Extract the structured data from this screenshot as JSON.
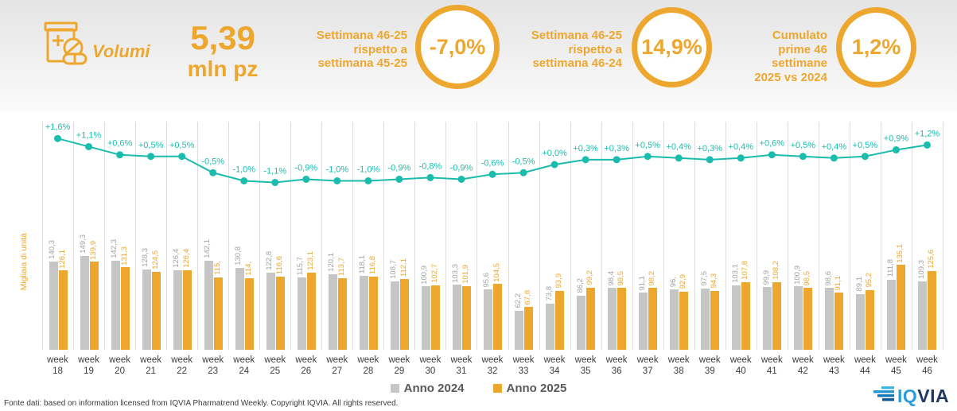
{
  "header": {
    "volumi_label": "Volumi",
    "headline_value": "5,39",
    "headline_unit": "mln pz",
    "kpis": [
      {
        "label": "Settimana 46-25\nrispetto a\nsettimana 45-25",
        "value": "-7,0%"
      },
      {
        "label": "Settimana 46-25\nrispetto a\nsettimana 46-24",
        "value": "14,9%"
      },
      {
        "label": "Cumulato\nprime 46\nsettimane\n2025 vs 2024",
        "value": "1,2%"
      }
    ]
  },
  "chart_data": {
    "type": "bar",
    "title": "",
    "xlabel": "",
    "ylabel": "Migliaia di unità",
    "ylim": [
      0,
      160
    ],
    "grid": "vertical",
    "legend_position": "bottom",
    "category_prefix": "week",
    "categories": [
      "18",
      "19",
      "20",
      "21",
      "22",
      "23",
      "24",
      "25",
      "26",
      "27",
      "28",
      "29",
      "30",
      "31",
      "32",
      "33",
      "34",
      "35",
      "36",
      "37",
      "38",
      "39",
      "40",
      "41",
      "42",
      "43",
      "44",
      "45",
      "46"
    ],
    "series": [
      {
        "name": "Anno 2024",
        "color": "#C6C6C6",
        "label_color": "#A3A3A3",
        "values": [
          140.3,
          149.3,
          142.3,
          128.3,
          126.4,
          142.1,
          130.8,
          122.8,
          115.7,
          120.1,
          118.1,
          108.7,
          100.9,
          103.3,
          95.6,
          62.2,
          73.8,
          86.2,
          98.4,
          91.1,
          96.0,
          97.5,
          103.1,
          99.9,
          100.9,
          98.6,
          89.1,
          111.8,
          109.3
        ],
        "labels": [
          "140,3",
          "149,3",
          "142,3",
          "128,3",
          "126,4",
          "142,1",
          "130,8",
          "122,8",
          "115,7",
          "120,1",
          "118,1",
          "108,7",
          "100,9",
          "103,3",
          "95,6",
          "62,2",
          "73,8",
          "86,2",
          "98,4",
          "91,1",
          "96,",
          "97,5",
          "103,1",
          "99,9",
          "100,9",
          "98,6",
          "89,1",
          "111,8",
          "109,3"
        ]
      },
      {
        "name": "Anno 2025",
        "color": "#EEA72E",
        "label_color": "#EEA72E",
        "values": [
          126.1,
          139.9,
          131.3,
          124.5,
          126.4,
          115.0,
          114.0,
          116.6,
          123.1,
          113.7,
          116.8,
          112.1,
          102.7,
          101.9,
          104.5,
          67.8,
          93.9,
          99.2,
          98.5,
          98.2,
          92.9,
          94.3,
          107.8,
          108.2,
          98.5,
          91.1,
          95.2,
          135.1,
          125.6
        ],
        "labels": [
          "126,1",
          "139,9",
          "131,3",
          "124,5",
          "126,4",
          "115,",
          "114,",
          "116,6",
          "123,1",
          "113,7",
          "116,8",
          "112,1",
          "102,7",
          "101,9",
          "104,5",
          "67,8",
          "93,9",
          "99,2",
          "98,5",
          "98,2",
          "92,9",
          "94,3",
          "107,8",
          "108,2",
          "98,5",
          "91,1",
          "95,2",
          "135,1",
          "125,6"
        ]
      }
    ],
    "line": {
      "color": "#1ABCAD",
      "values": [
        1.6,
        1.1,
        0.6,
        0.5,
        0.5,
        -0.5,
        -1.0,
        -1.1,
        -0.9,
        -1.0,
        -1.0,
        -0.9,
        -0.8,
        -0.9,
        -0.6,
        -0.5,
        0.0,
        0.3,
        0.3,
        0.5,
        0.4,
        0.3,
        0.4,
        0.6,
        0.5,
        0.4,
        0.5,
        0.9,
        1.2
      ],
      "labels": [
        "+1,6%",
        "+1,1%",
        "+0,6%",
        "+0,5%",
        "+0,5%",
        "-0,5%",
        "-1,0%",
        "-1,1%",
        "-0,9%",
        "-1,0%",
        "-1,0%",
        "-0,9%",
        "-0,8%",
        "-0,9%",
        "-0,6%",
        "-0,5%",
        "+0,0%",
        "+0,3%",
        "+0,3%",
        "+0,5%",
        "+0,4%",
        "+0,3%",
        "+0,4%",
        "+0,6%",
        "+0,5%",
        "+0,4%",
        "+0,5%",
        "+0,9%",
        "+1,2%"
      ]
    }
  },
  "footer": {
    "source": "Fonte dati: based on information licensed from IQVIA Pharmatrend Weekly. Copyright IQVIA. All rights reserved.",
    "logo_iq": "IQ",
    "logo_via": "VIA"
  },
  "colors": {
    "accent_orange": "#EEA72E",
    "teal_line": "#1ABCAD",
    "bar_gray": "#C6C6C6",
    "grid_gray": "#DCDCDC"
  }
}
